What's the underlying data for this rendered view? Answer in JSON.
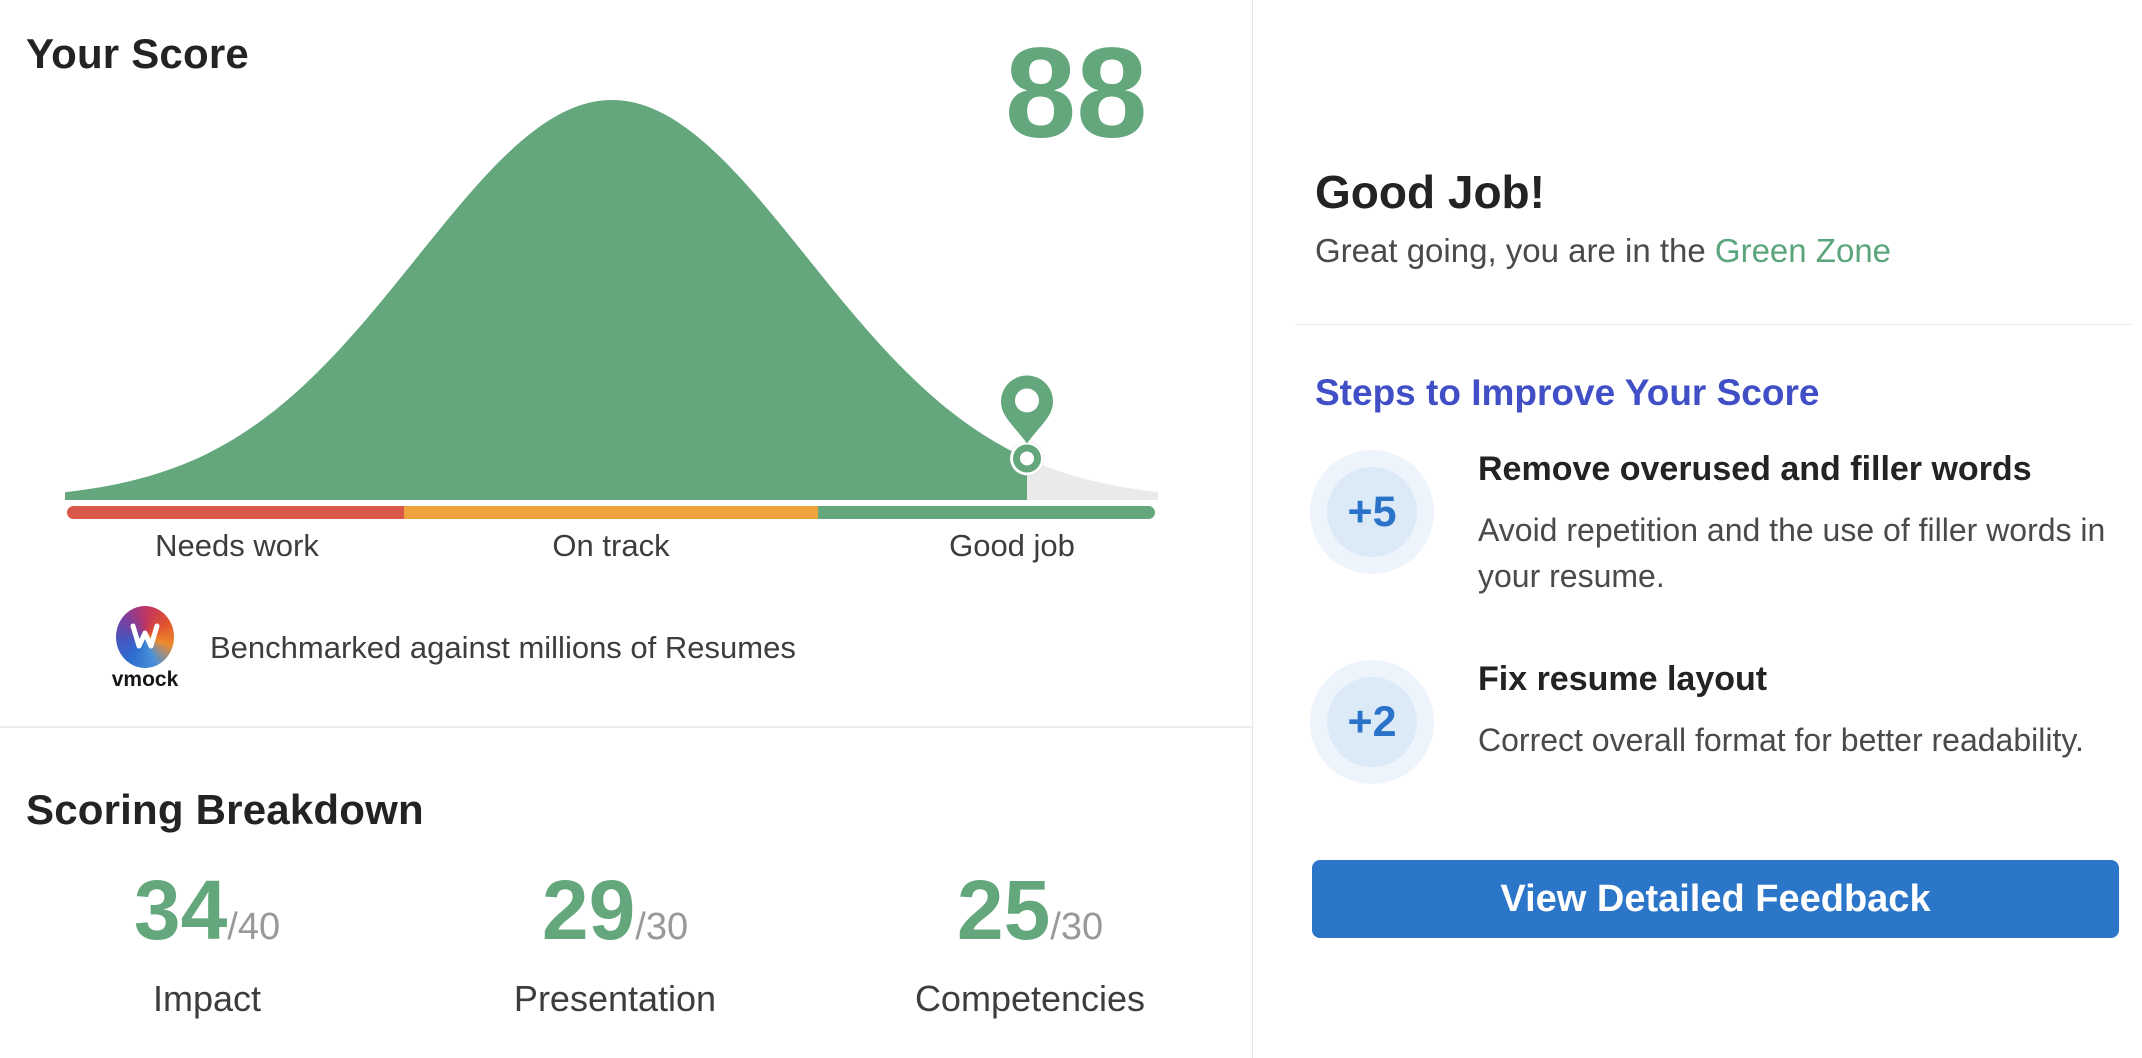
{
  "left_panel": {
    "title": "Your Score",
    "score_display": "88",
    "benchmark_text": "Benchmarked against millions of Resumes",
    "logo_text": "vmock",
    "breakdown": {
      "title": "Scoring Breakdown",
      "items": [
        {
          "value": "34",
          "max": "/40",
          "label": "Impact"
        },
        {
          "value": "29",
          "max": "/30",
          "label": "Presentation"
        },
        {
          "value": "25",
          "max": "/30",
          "label": "Competencies"
        }
      ]
    }
  },
  "right_panel": {
    "headline": "Good Job!",
    "subtext_prefix": "Great going, you are in the ",
    "zone_name": "Green Zone",
    "steps_title": "Steps to Improve Your Score",
    "steps": [
      {
        "points": "+5",
        "title": "Remove overused and filler words",
        "description": "Avoid repetition and the use of filler words in your resume."
      },
      {
        "points": "+2",
        "title": "Fix resume layout",
        "description": "Correct overall format for better readability."
      }
    ],
    "button_label": "View Detailed Feedback"
  },
  "chart_data": {
    "type": "area",
    "title": "Resume score bell-curve benchmark",
    "score": 88,
    "score_max": 100,
    "curve": "gaussian distribution, filled green up to the score marker, light gray tail beyond",
    "marker": "map-pin above a white circle placed on the curve at the score position",
    "zones": [
      {
        "label": "Needs work",
        "start": 0,
        "end": 31,
        "color": "#D9584A"
      },
      {
        "label": "On track",
        "start": 31,
        "end": 69,
        "color": "#EEA33D"
      },
      {
        "label": "Good job",
        "start": 69,
        "end": 100,
        "color": "#64A77C"
      }
    ],
    "breakdown": [
      {
        "category": "Impact",
        "value": 34,
        "max": 40
      },
      {
        "category": "Presentation",
        "value": 29,
        "max": 30
      },
      {
        "category": "Competencies",
        "value": 25,
        "max": 30
      }
    ]
  },
  "colors": {
    "green": "#64A77C",
    "red": "#D9584A",
    "orange": "#EEA33D",
    "tail_gray": "#EAEAEA",
    "steps_heading_blue": "#414FC7",
    "points_blue": "#2A73C9",
    "button_blue": "#2B76C8",
    "badge_outer": "#EEF4FC",
    "badge_inner": "#DCE9F7"
  }
}
